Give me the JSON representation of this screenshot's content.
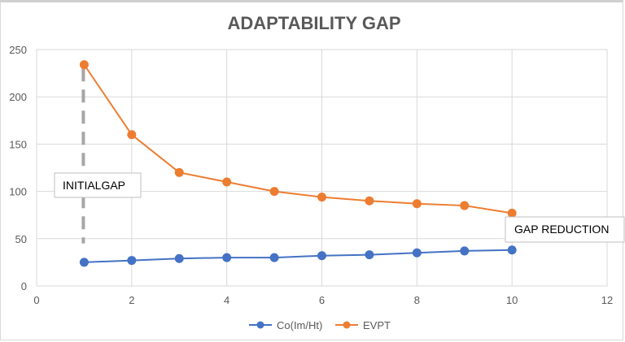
{
  "chart_data": {
    "type": "line",
    "title": "ADAPTABILITY GAP",
    "xlabel": "",
    "ylabel": "",
    "xlim": [
      0,
      12
    ],
    "ylim": [
      0,
      250
    ],
    "x_ticks": [
      0,
      2,
      4,
      6,
      8,
      10,
      12
    ],
    "y_ticks": [
      0,
      50,
      100,
      150,
      200,
      250
    ],
    "x_tick_labels": [
      "0",
      "2",
      "4",
      "6",
      "8",
      "10",
      "12"
    ],
    "y_tick_labels": [
      "0",
      "50",
      "100",
      "150",
      "200",
      "250"
    ],
    "grid": true,
    "legend_position": "bottom",
    "series": [
      {
        "name": "Co(Im/Ht)",
        "color": "#4472C4",
        "x": [
          1,
          2,
          3,
          4,
          5,
          6,
          7,
          8,
          9,
          10
        ],
        "values": [
          25,
          27,
          29,
          30,
          30,
          32,
          33,
          35,
          37,
          38
        ]
      },
      {
        "name": "EVPT",
        "color": "#ED7D31",
        "x": [
          1,
          2,
          3,
          4,
          5,
          6,
          7,
          8,
          9,
          10
        ],
        "values": [
          234,
          160,
          120,
          110,
          100,
          94,
          90,
          87,
          85,
          77
        ]
      }
    ],
    "annotations": [
      {
        "text": "INITIALGAP",
        "anchor_x": 1,
        "anchor_y": 105
      },
      {
        "text": "GAP REDUCTION",
        "anchor_x": 10,
        "anchor_y": 58
      }
    ],
    "reference_line": {
      "type": "dashed-vertical",
      "x": 1,
      "y_from": 45,
      "y_to": 230,
      "color": "#A6A6A6"
    }
  }
}
